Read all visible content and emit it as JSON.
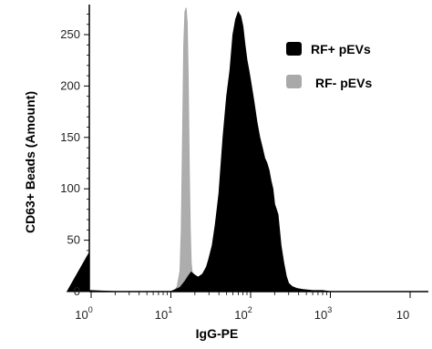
{
  "chart_data": {
    "type": "area",
    "xlabel": "IgG-PE",
    "ylabel": "CD63+ Beads (Amount)",
    "xscale": "log",
    "xlim": [
      0.5,
      1000
    ],
    "ylim": [
      0,
      280
    ],
    "x_ticks": [
      {
        "base": "10",
        "exp": "0",
        "value": 1
      },
      {
        "base": "10",
        "exp": "1",
        "value": 10
      },
      {
        "base": "10",
        "exp": "2",
        "value": 100
      },
      {
        "base": "10",
        "exp": "3",
        "value": 1000
      },
      {
        "base": "10",
        "exp": "",
        "value": 10000
      }
    ],
    "y_ticks": [
      0,
      50,
      100,
      150,
      200,
      250
    ],
    "legend_position": "top-right",
    "grid": false,
    "series": [
      {
        "name": "RF+ pEVs",
        "color": "#000000",
        "x": [
          0.5,
          0.52,
          0.55,
          0.6,
          0.7,
          1,
          2,
          5,
          10,
          13,
          15,
          16.5,
          18,
          20,
          22,
          25,
          28,
          30,
          33,
          36,
          40,
          45,
          50,
          55,
          60,
          65,
          70,
          75,
          80,
          85,
          90,
          95,
          100,
          110,
          120,
          130,
          140,
          150,
          160,
          170,
          180,
          190,
          200,
          210,
          220,
          240,
          260,
          280,
          300,
          330,
          380,
          450,
          600,
          800,
          1000
        ],
        "y": [
          38,
          25,
          12,
          3,
          1,
          1,
          0,
          0,
          0,
          4,
          10,
          15,
          19,
          16,
          14,
          17,
          24,
          32,
          45,
          65,
          95,
          150,
          190,
          215,
          250,
          265,
          272,
          268,
          258,
          240,
          225,
          215,
          205,
          185,
          165,
          150,
          140,
          130,
          125,
          118,
          108,
          100,
          85,
          80,
          75,
          45,
          28,
          15,
          8,
          5,
          3,
          2,
          1,
          1,
          0
        ]
      },
      {
        "name": "RF- pEVs",
        "color": "#a9a9a9",
        "x": [
          11,
          12,
          13,
          13.5,
          14,
          14.5,
          15,
          15.5,
          16,
          16.5,
          17,
          17.5,
          18,
          19,
          20,
          22
        ],
        "y": [
          0,
          5,
          20,
          60,
          150,
          240,
          272,
          276,
          262,
          210,
          120,
          60,
          28,
          10,
          3,
          0
        ]
      }
    ]
  }
}
